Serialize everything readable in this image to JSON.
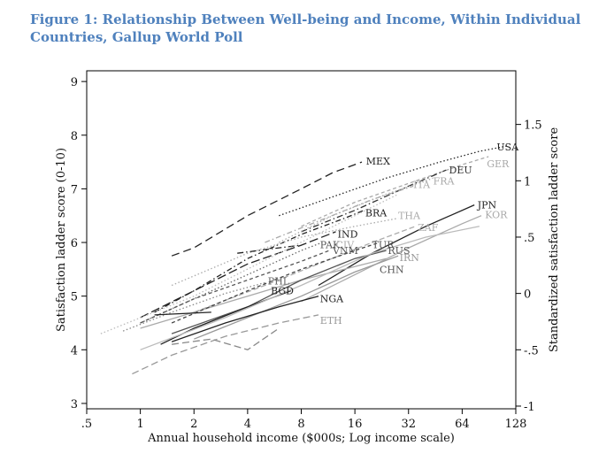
{
  "title": "Figure 1: Relationship Between Well-being and Income, Within Individual Countries, Gallup World Poll",
  "chart_data": {
    "type": "line",
    "title": "Figure 1: Relationship Between Well-being and Income, Within Individual Countries, Gallup World Poll",
    "xlabel": "Annual household income ($000s; Log income scale)",
    "ylabel": "Satisfaction ladder score (0-10)",
    "y2label": "Standardized satisfaction ladder score",
    "xscale": "log2",
    "xlim": [
      0.5,
      128
    ],
    "ylim": [
      2.9,
      9.2
    ],
    "x_ticks": [
      0.5,
      1,
      2,
      4,
      8,
      16,
      32,
      64,
      128
    ],
    "x_tick_labels": [
      ".5",
      "1",
      "2",
      "4",
      "8",
      "16",
      "32",
      "64",
      "128"
    ],
    "y_ticks": [
      3,
      4,
      5,
      6,
      7,
      8,
      9
    ],
    "y_tick_labels": [
      "3",
      "4",
      "5",
      "6",
      "7",
      "8",
      "9"
    ],
    "y2_ticks": [
      -1,
      -0.5,
      0,
      0.5,
      1,
      1.5
    ],
    "y2_tick_labels": [
      "-1",
      "-.5",
      "0",
      ".5",
      "1",
      "1.5"
    ],
    "y2_mapping": {
      "y_at_zero": 5.05,
      "y_per_unit": 2.1
    },
    "grid": false,
    "legend": "none",
    "series": [
      {
        "name": "MEX",
        "color": "#222222",
        "dash": "9,5",
        "x": [
          1.5,
          2,
          4,
          8,
          12,
          17.5
        ],
        "y": [
          5.75,
          5.9,
          6.5,
          7.0,
          7.3,
          7.5
        ]
      },
      {
        "name": "USA",
        "color": "#222222",
        "dash": "1.5,2.5",
        "x": [
          6,
          12,
          24,
          48,
          80,
          115
        ],
        "y": [
          6.5,
          6.85,
          7.2,
          7.5,
          7.7,
          7.8
        ]
      },
      {
        "name": "GER",
        "color": "#aaaaaa",
        "dash": "4,3",
        "x": [
          8,
          16,
          32,
          64,
          90
        ],
        "y": [
          6.3,
          6.75,
          7.1,
          7.45,
          7.6
        ]
      },
      {
        "name": "DEU",
        "color": "#333333",
        "dash": "7,3,1.5,3",
        "x": [
          8,
          16,
          32,
          52
        ],
        "y": [
          6.2,
          6.6,
          7.05,
          7.35
        ]
      },
      {
        "name": "FRA",
        "color": "#aaaaaa",
        "dash": "1.5,2.5",
        "x": [
          6,
          12,
          24,
          44
        ],
        "y": [
          6.0,
          6.5,
          6.9,
          7.2
        ]
      },
      {
        "name": "ITA",
        "color": "#aaaaaa",
        "dash": "6,3,1.5,3",
        "x": [
          5,
          10,
          20,
          34
        ],
        "y": [
          6.0,
          6.4,
          6.8,
          7.05
        ]
      },
      {
        "name": "BRA",
        "color": "#222222",
        "dash": "6,3,1.5,3",
        "x": [
          1.2,
          2,
          4,
          8,
          14,
          18
        ],
        "y": [
          4.7,
          5.1,
          5.7,
          6.15,
          6.45,
          6.6
        ]
      },
      {
        "name": "IND",
        "color": "#222222",
        "dash": "10,4",
        "x": [
          1,
          2,
          4,
          8,
          12.5
        ],
        "y": [
          4.6,
          5.1,
          5.6,
          5.95,
          6.2
        ]
      },
      {
        "name": "PAK",
        "color": "#666666",
        "dash": "1.5,2.5",
        "x": [
          1,
          2,
          4,
          8,
          10.5
        ],
        "y": [
          4.5,
          4.95,
          5.4,
          5.85,
          6.0
        ]
      },
      {
        "name": "JPN",
        "color": "#222222",
        "dash": "",
        "x": [
          10,
          20,
          40,
          75
        ],
        "y": [
          5.2,
          5.8,
          6.3,
          6.7
        ]
      },
      {
        "name": "KOR",
        "color": "#aaaaaa",
        "dash": "",
        "x": [
          8,
          16,
          32,
          64,
          82
        ],
        "y": [
          4.9,
          5.4,
          5.9,
          6.35,
          6.5
        ]
      },
      {
        "name": "THA",
        "color": "#aaaaaa",
        "dash": "1.5,2.5",
        "x": [
          1.5,
          4,
          8,
          16,
          28
        ],
        "y": [
          5.2,
          5.8,
          6.1,
          6.3,
          6.45
        ]
      },
      {
        "name": "ZAF",
        "color": "#aaaaaa",
        "dash": "6,3",
        "x": [
          2,
          5,
          10,
          20,
          35
        ],
        "y": [
          4.7,
          5.2,
          5.6,
          6.0,
          6.3
        ]
      },
      {
        "name": "CHN",
        "color": "#aaaaaa",
        "dash": "",
        "x": [
          1,
          2,
          4,
          8,
          16,
          24
        ],
        "y": [
          4.4,
          4.7,
          5.0,
          5.3,
          5.55,
          5.7
        ]
      },
      {
        "name": "RUS",
        "color": "#555555",
        "dash": "",
        "x": [
          1.5,
          4,
          8,
          16,
          24
        ],
        "y": [
          4.3,
          4.8,
          5.3,
          5.7,
          5.85
        ]
      },
      {
        "name": "TUR",
        "color": "#444444",
        "dash": "4,3",
        "x": [
          1.5,
          4,
          8,
          16,
          22
        ],
        "y": [
          4.5,
          5.1,
          5.5,
          5.85,
          6.0
        ]
      },
      {
        "name": "VNM",
        "color": "#555555",
        "dash": "4,3",
        "x": [
          1,
          2,
          4,
          8,
          11.5
        ],
        "y": [
          4.5,
          4.95,
          5.3,
          5.65,
          5.85
        ]
      },
      {
        "name": "IRN",
        "color": "#999999",
        "dash": "",
        "x": [
          2,
          4,
          8,
          16,
          28
        ],
        "y": [
          4.2,
          4.6,
          5.0,
          5.45,
          5.75
        ]
      },
      {
        "name": "PHL",
        "color": "#888888",
        "dash": "1.5,2.5",
        "x": [
          0.8,
          1.5,
          3,
          5
        ],
        "y": [
          4.35,
          4.7,
          5.05,
          5.25
        ]
      },
      {
        "name": "BGD",
        "color": "#222222",
        "dash": "",
        "x": [
          1.3,
          2,
          4,
          7
        ],
        "y": [
          4.1,
          4.4,
          4.8,
          5.1
        ]
      },
      {
        "name": "NGA",
        "color": "#222222",
        "dash": "",
        "x": [
          1.5,
          3,
          6,
          10
        ],
        "y": [
          4.15,
          4.5,
          4.8,
          5.0
        ]
      },
      {
        "name": "ETH",
        "color": "#999999",
        "dash": "8,4",
        "x": [
          0.9,
          1.5,
          3,
          6,
          10
        ],
        "y": [
          3.55,
          3.9,
          4.25,
          4.5,
          4.65
        ]
      },
      {
        "name": "",
        "color": "#222222",
        "dash": "",
        "x": [
          1.2,
          2.5
        ],
        "y": [
          4.65,
          4.7
        ]
      },
      {
        "name": "",
        "color": "#222222",
        "dash": "7,3,1.5,3",
        "x": [
          3.5,
          6,
          8
        ],
        "y": [
          5.8,
          5.9,
          5.95
        ]
      },
      {
        "name": "",
        "color": "#888888",
        "dash": "8,4",
        "x": [
          1.5,
          2.5,
          4,
          6
        ],
        "y": [
          4.1,
          4.2,
          4.0,
          4.4
        ]
      },
      {
        "name": "",
        "color": "#bbbbbb",
        "dash": "1.5,2.5",
        "x": [
          0.6,
          2,
          6,
          16,
          28
        ],
        "y": [
          4.3,
          5.0,
          5.8,
          6.5,
          6.9
        ]
      },
      {
        "name": "",
        "color": "#bbbbbb",
        "dash": "",
        "x": [
          1,
          3,
          8,
          20,
          40,
          80
        ],
        "y": [
          4.0,
          4.6,
          5.2,
          5.8,
          6.1,
          6.3
        ]
      }
    ],
    "labels": [
      {
        "text": "MEX",
        "x": 18.5,
        "y": 7.52,
        "color": "#222222"
      },
      {
        "text": "USA",
        "x": 100,
        "y": 7.78,
        "color": "#222222"
      },
      {
        "text": "DEU",
        "x": 54,
        "y": 7.35,
        "color": "#333333"
      },
      {
        "text": "GER",
        "x": 88,
        "y": 7.47,
        "color": "#aaaaaa"
      },
      {
        "text": "FRA",
        "x": 44,
        "y": 7.15,
        "color": "#aaaaaa"
      },
      {
        "text": "ITA",
        "x": 34,
        "y": 7.08,
        "color": "#aaaaaa"
      },
      {
        "text": "BRA",
        "x": 18.3,
        "y": 6.55,
        "color": "#222222"
      },
      {
        "text": "JPN",
        "x": 78,
        "y": 6.7,
        "color": "#222222"
      },
      {
        "text": "KOR",
        "x": 86,
        "y": 6.52,
        "color": "#aaaaaa"
      },
      {
        "text": "THA",
        "x": 28,
        "y": 6.5,
        "color": "#aaaaaa"
      },
      {
        "text": "ZAF",
        "x": 36,
        "y": 6.28,
        "color": "#aaaaaa"
      },
      {
        "text": "IND",
        "x": 12.8,
        "y": 6.16,
        "color": "#222222"
      },
      {
        "text": "PAK",
        "x": 10.2,
        "y": 5.96,
        "color": "#555555"
      },
      {
        "text": "CIV",
        "x": 12.5,
        "y": 5.96,
        "color": "#aaaaaa"
      },
      {
        "text": "TUR",
        "x": 20,
        "y": 5.96,
        "color": "#555555"
      },
      {
        "text": "VNM",
        "x": 12,
        "y": 5.85,
        "color": "#555555"
      },
      {
        "text": "RUS",
        "x": 24.5,
        "y": 5.85,
        "color": "#555555"
      },
      {
        "text": "IRN",
        "x": 28.5,
        "y": 5.72,
        "color": "#999999"
      },
      {
        "text": "CHN",
        "x": 22,
        "y": 5.5,
        "color": "#555555"
      },
      {
        "text": "PHL",
        "x": 5.2,
        "y": 5.28,
        "color": "#666666"
      },
      {
        "text": "BGD",
        "x": 5.4,
        "y": 5.1,
        "color": "#222222"
      },
      {
        "text": "NGA",
        "x": 10.2,
        "y": 4.95,
        "color": "#222222"
      },
      {
        "text": "ETH",
        "x": 10.2,
        "y": 4.55,
        "color": "#999999"
      }
    ]
  }
}
